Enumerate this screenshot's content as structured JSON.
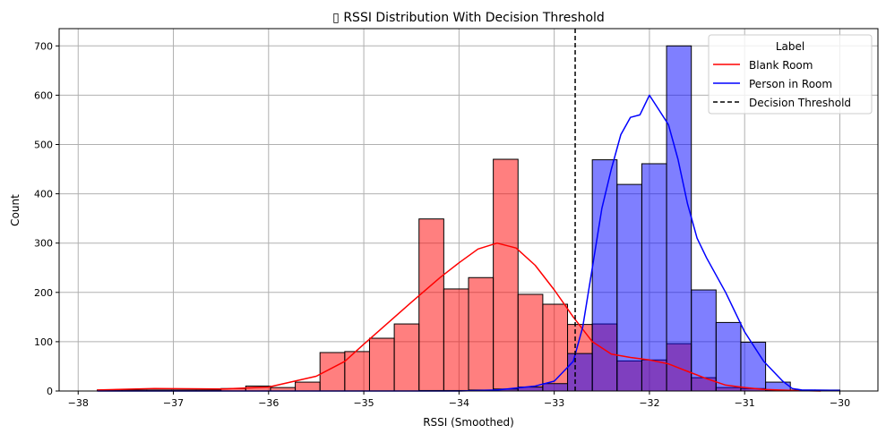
{
  "chart_data": {
    "type": "histogram",
    "title": "▯ RSSI Distribution With Decision Threshold",
    "xlabel": "RSSI (Smoothed)",
    "ylabel": "Count",
    "xlim": [
      -38.2,
      -29.6
    ],
    "ylim": [
      0,
      735
    ],
    "xticks": [
      -38,
      -37,
      -36,
      -35,
      -34,
      -33,
      -32,
      -31,
      -30
    ],
    "yticks": [
      0,
      100,
      200,
      300,
      400,
      500,
      600,
      700
    ],
    "grid": true,
    "bins": {
      "start": -37.8,
      "end": -30.0,
      "count": 30
    },
    "series": [
      {
        "name": "Blank Room",
        "color": "#ff0000",
        "counts": [
          2,
          2,
          2,
          2,
          2,
          5,
          10,
          7,
          18,
          78,
          80,
          107,
          136,
          349,
          207,
          230,
          470,
          196,
          176,
          135,
          136,
          61,
          63,
          96,
          27,
          7,
          5,
          1,
          1,
          0
        ]
      },
      {
        "name": "Person in Room",
        "color": "#0000ff",
        "counts": [
          0,
          0,
          0,
          0,
          0,
          0,
          0,
          0,
          0,
          0,
          0,
          0,
          0,
          1,
          1,
          2,
          4,
          8,
          15,
          76,
          469,
          419,
          461,
          700,
          205,
          139,
          99,
          18,
          2,
          2
        ]
      }
    ],
    "kde": [
      {
        "name": "Blank Room",
        "x": [
          -37.8,
          -37.2,
          -36.5,
          -36,
          -35.5,
          -35.2,
          -35,
          -34.5,
          -34.2,
          -34,
          -33.8,
          -33.6,
          -33.4,
          -33.2,
          -33,
          -32.8,
          -32.6,
          -32.4,
          -32.2,
          -32,
          -31.8,
          -31.6,
          -31.4,
          -31.2,
          -31,
          -30.8,
          -30.5,
          -30.2
        ],
        "y": [
          2,
          5,
          4,
          8,
          30,
          60,
          95,
          180,
          230,
          260,
          288,
          300,
          290,
          255,
          205,
          150,
          100,
          75,
          68,
          63,
          55,
          40,
          25,
          12,
          7,
          3,
          1,
          0
        ]
      },
      {
        "name": "Person in Room",
        "x": [
          -37.8,
          -34,
          -33.6,
          -33.2,
          -33,
          -32.8,
          -32.7,
          -32.6,
          -32.5,
          -32.4,
          -32.3,
          -32.2,
          -32.1,
          -32.0,
          -31.9,
          -31.8,
          -31.7,
          -31.6,
          -31.5,
          -31.4,
          -31.2,
          -31.0,
          -30.8,
          -30.6,
          -30.5,
          -30.4,
          -30.0
        ],
        "y": [
          0,
          0,
          2,
          10,
          20,
          60,
          130,
          250,
          370,
          450,
          520,
          555,
          560,
          600,
          570,
          540,
          470,
          380,
          310,
          270,
          200,
          120,
          60,
          20,
          5,
          2,
          1
        ]
      }
    ],
    "threshold": {
      "name": "Decision Threshold",
      "x": -32.78,
      "color": "#000000",
      "style": "dashed"
    },
    "legend": {
      "title": "Label",
      "placement": "top-right",
      "entries": [
        "Blank Room",
        "Person in Room",
        "Decision Threshold"
      ]
    }
  }
}
